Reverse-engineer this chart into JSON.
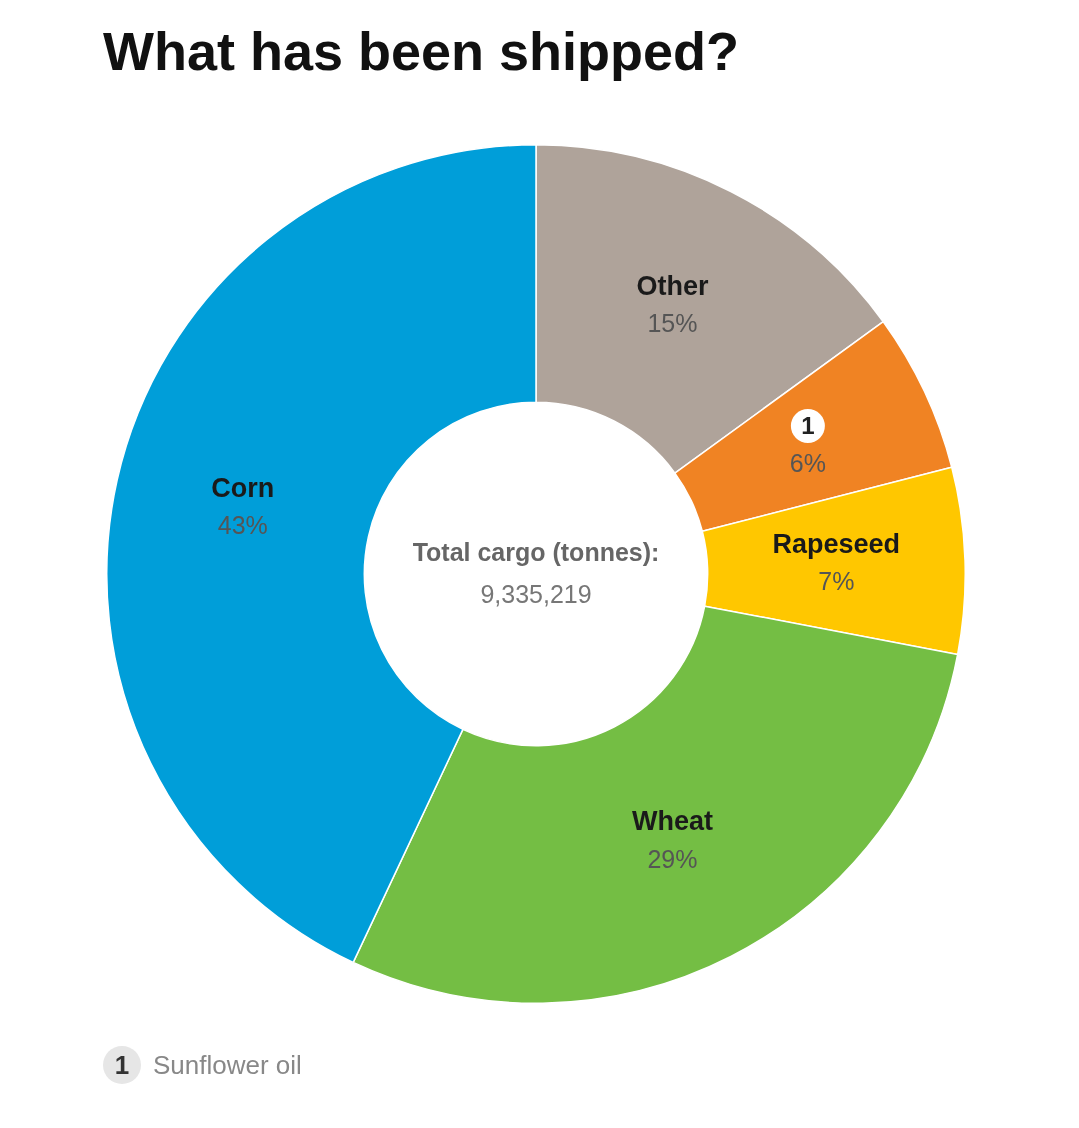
{
  "chart_data": {
    "type": "donut",
    "title": "What has been shipped?",
    "categories": [
      "Other",
      "1",
      "Rapeseed",
      "Wheat",
      "Corn"
    ],
    "values": [
      15,
      6,
      7,
      29,
      43
    ],
    "value_labels": [
      "15%",
      "6%",
      "7%",
      "29%",
      "43%"
    ],
    "colors": [
      "#afa39a",
      "#f08323",
      "#ffc700",
      "#74be44",
      "#009ed9"
    ],
    "annotations": [
      "Total cargo (tonnes):",
      "9,335,219",
      "1 Sunflower oil"
    ],
    "legend": false
  }
}
